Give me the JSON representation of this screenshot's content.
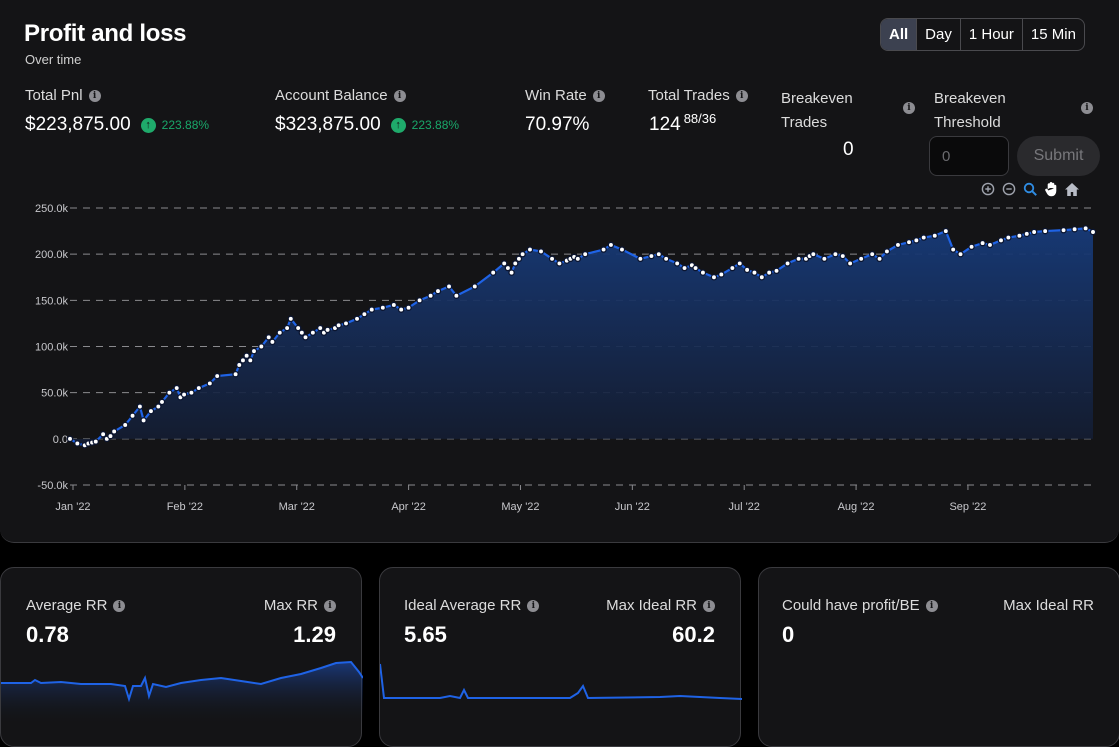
{
  "header": {
    "title": "Profit and loss",
    "subtitle": "Over time",
    "ranges": [
      "All",
      "Day",
      "1 Hour",
      "15 Min"
    ],
    "active_range": "All"
  },
  "stats": {
    "total_pnl": {
      "label": "Total Pnl",
      "value": "$223,875.00",
      "change": "223.88%"
    },
    "account_balance": {
      "label": "Account Balance",
      "value": "$323,875.00",
      "change": "223.88%"
    },
    "win_rate": {
      "label": "Win Rate",
      "value": "70.97%"
    },
    "total_trades": {
      "label": "Total Trades",
      "value": "124",
      "split": "88/36"
    },
    "breakeven_trades": {
      "label_line1": "Breakeven",
      "label_line2": "Trades",
      "value": "0"
    },
    "breakeven_threshold": {
      "label_line1": "Breakeven",
      "label_line2": "Threshold",
      "placeholder": "0",
      "submit_label": "Submit"
    }
  },
  "toolbar": {
    "icons": [
      "zoom-in-icon",
      "zoom-out-icon",
      "zoom-select-icon",
      "pan-hand-icon",
      "home-reset-icon"
    ]
  },
  "colors": {
    "line": "#1f63e6",
    "fill_top": "#173a78",
    "fill_bottom": "#141c30",
    "positive": "#1faa6b",
    "active_tab": "#3c4150"
  },
  "chart_data": {
    "type": "area",
    "y_ticks": [
      "250.0k",
      "200.0k",
      "150.0k",
      "100.0k",
      "50.0k",
      "0.0",
      "-50.0k"
    ],
    "x_ticks": [
      "Jan '22",
      "Feb '22",
      "Mar '22",
      "Apr '22",
      "May '22",
      "Jun '22",
      "Jul '22",
      "Aug '22",
      "Sep '22"
    ],
    "ylim": [
      -50000,
      250000
    ],
    "grid": true,
    "series": [
      {
        "x": [
          0,
          2,
          4,
          5,
          6,
          7,
          9,
          10,
          11,
          12,
          15,
          17,
          19,
          20,
          22,
          24,
          25,
          27,
          29,
          30,
          31,
          33,
          35,
          38,
          40,
          45,
          46,
          47,
          48,
          49,
          50,
          52,
          54,
          55,
          57,
          59,
          60,
          62,
          63,
          64,
          66,
          68,
          69,
          70,
          72,
          73,
          75,
          78,
          80,
          82,
          85,
          88,
          90,
          92,
          95,
          98,
          100,
          103,
          105,
          110,
          115,
          118,
          119,
          120,
          121,
          122,
          123,
          125,
          128,
          131,
          133,
          135,
          136,
          137,
          138,
          140,
          145,
          147,
          150,
          155,
          158,
          160,
          162,
          165,
          167,
          169,
          170,
          172,
          175,
          177,
          180,
          182,
          184,
          186,
          188,
          190,
          192,
          195,
          198,
          200,
          201,
          202,
          205,
          208,
          210,
          212,
          215,
          218,
          220,
          222,
          225,
          228,
          230,
          232,
          235,
          238,
          240,
          242,
          245,
          248,
          250,
          253,
          255,
          258,
          260,
          262,
          265,
          270,
          273,
          276,
          278
        ],
        "y": [
          0,
          -5000,
          -7000,
          -5000,
          -4000,
          -3000,
          5000,
          0,
          3000,
          8000,
          15000,
          25000,
          35000,
          20000,
          30000,
          35000,
          40000,
          50000,
          55000,
          45000,
          48000,
          50000,
          55000,
          60000,
          68000,
          70000,
          80000,
          85000,
          90000,
          85000,
          95000,
          100000,
          110000,
          105000,
          115000,
          120000,
          130000,
          120000,
          115000,
          110000,
          115000,
          120000,
          115000,
          118000,
          120000,
          123000,
          125000,
          130000,
          135000,
          140000,
          142000,
          145000,
          140000,
          142000,
          150000,
          155000,
          160000,
          165000,
          155000,
          165000,
          180000,
          190000,
          185000,
          180000,
          190000,
          195000,
          200000,
          205000,
          203000,
          195000,
          190000,
          193000,
          195000,
          197000,
          195000,
          200000,
          205000,
          210000,
          205000,
          195000,
          198000,
          200000,
          195000,
          190000,
          185000,
          188000,
          185000,
          180000,
          175000,
          178000,
          185000,
          190000,
          183000,
          180000,
          175000,
          180000,
          182000,
          190000,
          195000,
          195000,
          198000,
          200000,
          195000,
          200000,
          198000,
          190000,
          195000,
          200000,
          195000,
          203000,
          210000,
          213000,
          215000,
          218000,
          220000,
          225000,
          205000,
          200000,
          208000,
          212000,
          210000,
          215000,
          218000,
          220000,
          222000,
          224000,
          225000,
          226000,
          227000,
          228000,
          224000
        ]
      }
    ]
  },
  "cards": [
    {
      "left_label": "Average RR",
      "left_value": "0.78",
      "right_label": "Max RR",
      "right_value": "1.29",
      "right_info": true
    },
    {
      "left_label": "Ideal Average RR",
      "left_value": "5.65",
      "right_label": "Max Ideal RR",
      "right_value": "60.2",
      "right_info": true
    },
    {
      "left_label": "Could have profit/BE",
      "left_value": "0",
      "right_label": "Max Ideal RR",
      "right_value": "",
      "right_info": false
    }
  ]
}
